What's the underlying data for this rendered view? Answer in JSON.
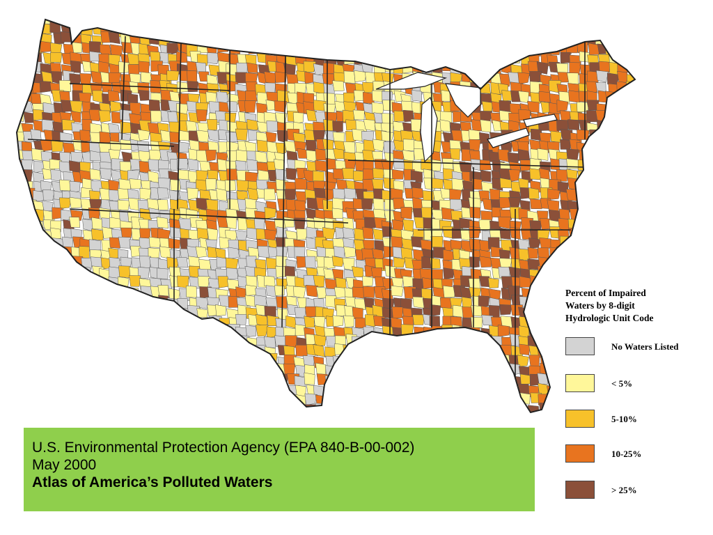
{
  "colors": {
    "none": "#d3d3d3",
    "lt5": "#fff79a",
    "p5_10": "#f7c12a",
    "p10_25": "#e8741f",
    "gt25": "#8b5039",
    "water": "#ffffff",
    "border": "#222222",
    "citation_bg": "#8fcf4c"
  },
  "map": {
    "subject": "Contiguous United States — 8-digit hydrologic units shaded by percent of impaired waters"
  },
  "legend": {
    "title_lines": [
      "Percent of Impaired",
      "Waters by 8-digit",
      "Hydrologic Unit Code"
    ],
    "items": [
      {
        "label": "No Waters Listed",
        "key": "none"
      },
      {
        "label": "< 5%",
        "key": "lt5"
      },
      {
        "label": "5-10%",
        "key": "p5_10"
      },
      {
        "label": "10-25%",
        "key": "p10_25"
      },
      {
        "label": "> 25%",
        "key": "gt25"
      }
    ]
  },
  "citation": {
    "line1": "U.S. Environmental Protection Agency (EPA 840-B-00-002)",
    "line2": "May 2000",
    "title": "Atlas of America’s Polluted Waters"
  }
}
